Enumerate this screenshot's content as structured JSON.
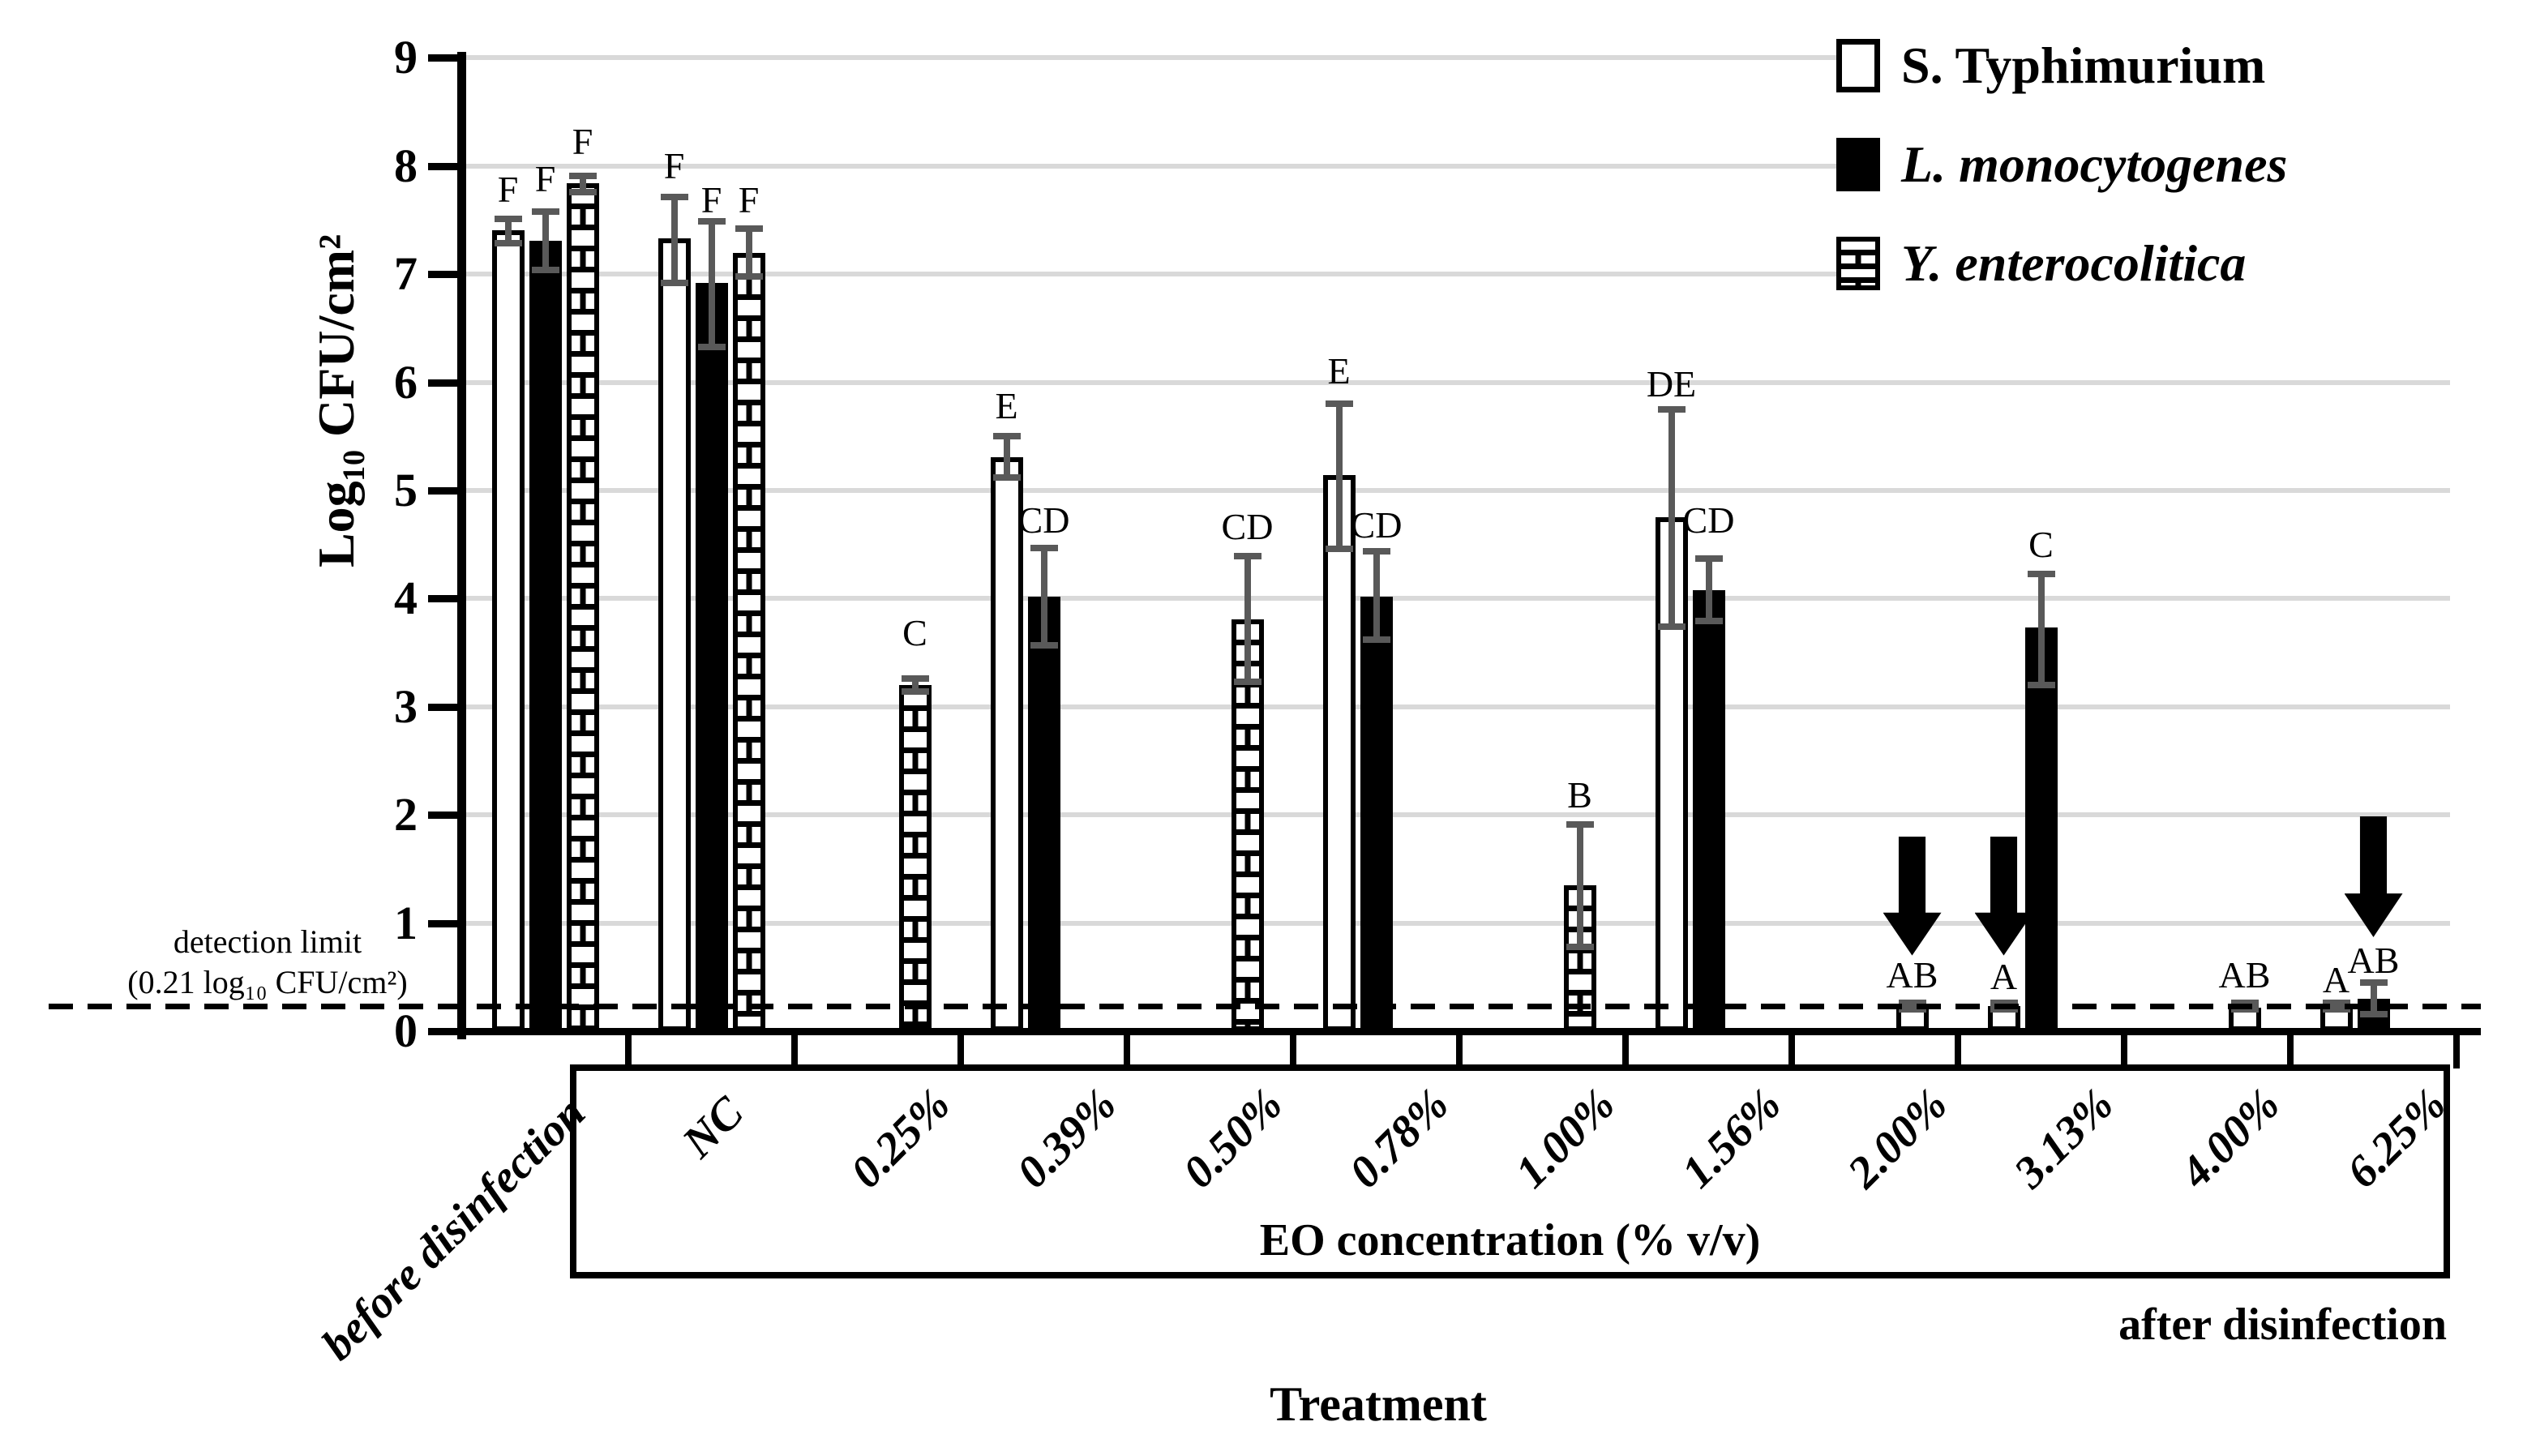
{
  "chart_data": {
    "type": "bar",
    "ylabel": "Log₁₀ CFU/cm²",
    "xlabel": "Treatment",
    "ylim": [
      0,
      9
    ],
    "y_tick_labels": [
      "0",
      "1",
      "2",
      "3",
      "4",
      "5",
      "6",
      "7",
      "8",
      "9"
    ],
    "grid": "horizontal",
    "legend_position": "top-right",
    "categories": [
      "before disinfection",
      "NC",
      "0.25%",
      "0.39%",
      "0.50%",
      "0.78%",
      "1.00%",
      "1.56%",
      "2.00%",
      "3.13%",
      "4.00%",
      "6.25%"
    ],
    "series": [
      {
        "name": "S. Typhimurium",
        "style": "white",
        "italic": false,
        "values": [
          7.41,
          7.33,
          null,
          5.31,
          null,
          5.14,
          null,
          4.75,
          null,
          0.23,
          null,
          0.23
        ],
        "err_hi": [
          7.51,
          7.71,
          null,
          5.5,
          null,
          5.8,
          null,
          5.75,
          null,
          0.26,
          null,
          0.26
        ],
        "err_lo": [
          7.29,
          6.92,
          null,
          5.12,
          null,
          4.46,
          null,
          3.74,
          null,
          0.2,
          null,
          0.2
        ],
        "letters": [
          "F",
          "F",
          null,
          "E",
          null,
          "E",
          null,
          "DE",
          null,
          "A",
          null,
          "A"
        ],
        "letter_y": [
          7.78,
          8.0,
          null,
          5.78,
          null,
          6.1,
          null,
          5.98,
          null,
          0.5,
          null,
          0.47
        ]
      },
      {
        "name": "L. monocytogenes",
        "style": "black",
        "italic": true,
        "values": [
          7.31,
          6.92,
          null,
          4.02,
          null,
          4.02,
          null,
          4.08,
          null,
          3.73,
          null,
          0.3
        ],
        "err_hi": [
          7.58,
          7.49,
          null,
          4.47,
          null,
          4.44,
          null,
          4.37,
          null,
          4.23,
          null,
          0.45
        ],
        "err_lo": [
          7.04,
          6.33,
          null,
          3.57,
          null,
          3.62,
          null,
          3.79,
          null,
          3.2,
          null,
          0.16
        ],
        "letters": [
          "F",
          "F",
          null,
          "CD",
          null,
          "CD",
          null,
          "CD",
          null,
          "C",
          null,
          "AB"
        ],
        "letter_y": [
          7.88,
          7.68,
          null,
          4.72,
          null,
          4.68,
          null,
          4.72,
          null,
          4.5,
          null,
          0.65
        ]
      },
      {
        "name": "Y. enterocolitica",
        "style": "brick",
        "italic": true,
        "values": [
          7.84,
          7.2,
          3.2,
          null,
          3.81,
          null,
          1.35,
          null,
          0.22,
          null,
          0.22,
          null
        ],
        "err_hi": [
          7.91,
          7.42,
          3.26,
          null,
          4.39,
          null,
          1.91,
          null,
          0.26,
          null,
          0.26,
          null
        ],
        "err_lo": [
          7.76,
          6.98,
          3.14,
          null,
          3.23,
          null,
          0.78,
          null,
          0.2,
          null,
          0.2,
          null
        ],
        "letters": [
          "F",
          "F",
          "C",
          null,
          "CD",
          null,
          "B",
          null,
          "AB",
          null,
          "AB",
          null
        ],
        "letter_y": [
          8.22,
          7.68,
          3.68,
          null,
          4.66,
          null,
          2.18,
          null,
          0.52,
          null,
          0.52,
          null
        ]
      }
    ],
    "arrows": [
      {
        "category": "2.00%",
        "series": "Y. enterocolitica",
        "from": 1.8,
        "to": 0.7
      },
      {
        "category": "3.13%",
        "series": "S. Typhimurium",
        "from": 1.8,
        "to": 0.7
      },
      {
        "category": "6.25%",
        "series": "L. monocytogenes",
        "from": 1.99,
        "to": 0.87
      }
    ],
    "detection_limit": {
      "value": 0.21,
      "label_line1": "detection limit",
      "label_line2": "(0.21 log₁₀ CFU/cm²)"
    },
    "eo_box_label": "EO concentration (% v/v)",
    "after_label": "after disinfection",
    "colors": {
      "bar_black": "#000000",
      "bar_white": "#ffffff",
      "error_bar": "#595959",
      "gridline": "#d9d9d9"
    }
  }
}
